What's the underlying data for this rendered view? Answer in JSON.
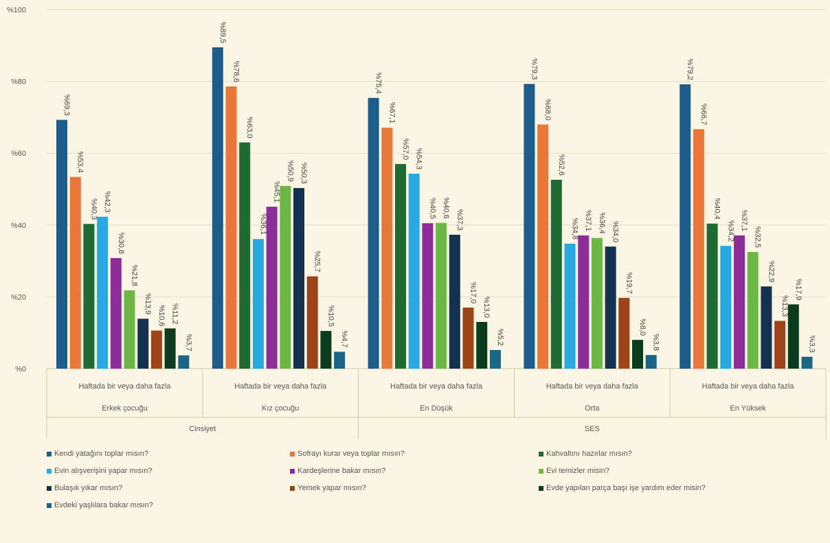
{
  "chart_data": {
    "type": "bar",
    "y_axis": {
      "ticks": [
        "%0",
        "%20",
        "%40",
        "%60",
        "%80",
        "%100"
      ],
      "ylim": [
        0,
        100
      ]
    },
    "grid": true,
    "legend_position": "bottom",
    "groups": [
      {
        "name": "Cinsiyet",
        "categories": [
          {
            "row1": "Haftada bir veya daha fazla",
            "row2": "Erkek çocuğu"
          },
          {
            "row1": "Haftada bir veya daha fazla",
            "row2": "Kız çocuğu"
          }
        ]
      },
      {
        "name": "SES",
        "categories": [
          {
            "row1": "Haftada bir veya daha fazla",
            "row2": "En Düşük"
          },
          {
            "row1": "Haftada bir veya daha fazla",
            "row2": "Orta"
          },
          {
            "row1": "Haftada bir veya daha fazla",
            "row2": "En Yüksek"
          }
        ]
      }
    ],
    "series": [
      {
        "name": "Kendi yatağını toplar mısın?",
        "color": "#1e5d8a",
        "values": [
          69.3,
          89.5,
          75.4,
          79.3,
          79.2
        ],
        "labels": [
          "%69,3",
          "%89,5",
          "%75,4",
          "%79,3",
          "%79,2"
        ]
      },
      {
        "name": "Sofrayı kurar veya toplar mısın?",
        "color": "#e9773a",
        "values": [
          53.4,
          78.6,
          67.1,
          68.0,
          66.7
        ],
        "labels": [
          "%53,4",
          "%78,6",
          "%67,1",
          "%68,0",
          "%66,7"
        ]
      },
      {
        "name": "Kahvaltını hazırlar mısın?",
        "color": "#1f6b33",
        "values": [
          40.3,
          63.0,
          57.0,
          52.6,
          40.4
        ],
        "labels": [
          "%40,3",
          "%63,0",
          "%57,0",
          "%52,6",
          "%40,4"
        ]
      },
      {
        "name": "Evin alışverişini yapar mısın?",
        "color": "#27a9e1",
        "values": [
          42.3,
          36.1,
          54.3,
          34.8,
          34.2
        ],
        "labels": [
          "%42,3",
          "%36,1",
          "%54,3",
          "%34,8",
          "%34,2"
        ]
      },
      {
        "name": "Kardeşlerine bakar mısın?",
        "color": "#8e2c9a",
        "values": [
          30.8,
          45.1,
          40.5,
          37.1,
          37.1
        ],
        "labels": [
          "%30,8",
          "%45,1",
          "%40,5",
          "%37,1",
          "%37,1"
        ]
      },
      {
        "name": "Evi temizler misin?",
        "color": "#6cb844",
        "values": [
          21.8,
          50.9,
          40.6,
          36.4,
          32.5
        ],
        "labels": [
          "%21,8",
          "%50,9",
          "%40,6",
          "%36,4",
          "%32,5"
        ]
      },
      {
        "name": "Bulaşık yıkar mısın?",
        "color": "#14324f",
        "values": [
          13.9,
          50.3,
          37.3,
          34.0,
          22.9
        ],
        "labels": [
          "%13,9",
          "%50,3",
          "%37,3",
          "%34,0",
          "%22,9"
        ]
      },
      {
        "name": "Yemek yapar mısın?",
        "color": "#9c4317",
        "values": [
          10.6,
          25.7,
          17.0,
          19.7,
          13.3
        ],
        "labels": [
          "%10,6",
          "%25,7",
          "%17,0",
          "%19,7",
          "%13,3"
        ]
      },
      {
        "name": "Evde yapılan parça başı işe yardım eder misin?",
        "color": "#0b3d1c",
        "values": [
          11.2,
          10.5,
          13.0,
          8.0,
          17.9
        ],
        "labels": [
          "%11,2",
          "%10,5",
          "%13,0",
          "%8,0",
          "%17,9"
        ]
      },
      {
        "name": "Evdeki yaşlılara bakar mısın?",
        "color": "#1b6688",
        "values": [
          3.7,
          4.7,
          5.2,
          3.8,
          3.3
        ],
        "labels": [
          "%3,7",
          "%4,7",
          "%5,2",
          "%3,8",
          "%3,3"
        ]
      }
    ]
  }
}
